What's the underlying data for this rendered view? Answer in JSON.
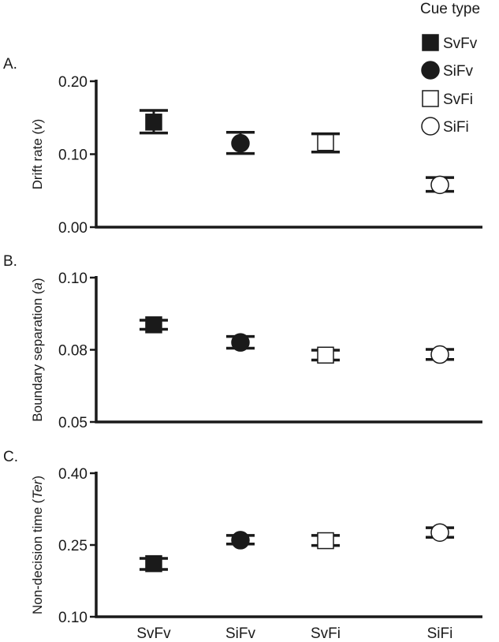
{
  "legend": {
    "title": "Cue type",
    "placement": "top-right",
    "items": [
      {
        "label": "SvFv",
        "marker": "square",
        "fill": "filled"
      },
      {
        "label": "SiFv",
        "marker": "circle",
        "fill": "filled"
      },
      {
        "label": "SvFi",
        "marker": "square",
        "fill": "open"
      },
      {
        "label": "SiFi",
        "marker": "circle",
        "fill": "open"
      }
    ]
  },
  "colors": {
    "ink": "#1a1a1a",
    "open_fill": "#ffffff"
  },
  "chart_data": [
    {
      "type": "scatter",
      "panel_label": "A.",
      "ylabel": "Drift rate (v)",
      "ylabel_main": "Drift rate (",
      "ylabel_italic": "v",
      "ylabel_close": ")",
      "categories": [
        "SvFv",
        "SiFv",
        "SvFi",
        "SiFi"
      ],
      "ylim": [
        0.0,
        0.2
      ],
      "yticks": [
        0.0,
        0.1,
        0.2
      ],
      "ytick_labels": [
        "0.00",
        "0.10",
        "0.20"
      ],
      "values": [
        0.144,
        0.115,
        0.116,
        0.058
      ],
      "err_low": [
        0.129,
        0.101,
        0.103,
        0.049
      ],
      "err_high": [
        0.16,
        0.13,
        0.128,
        0.068
      ],
      "grid": false,
      "show_x_tick_labels": false
    },
    {
      "type": "scatter",
      "panel_label": "B.",
      "ylabel": "Boundary separation (a)",
      "ylabel_main": "Boundary separation (",
      "ylabel_italic": "a",
      "ylabel_close": ")",
      "categories": [
        "SvFv",
        "SiFv",
        "SvFi",
        "SiFi"
      ],
      "ylim": [
        0.05,
        0.1
      ],
      "yticks": [
        0.05,
        0.08,
        0.1
      ],
      "ytick_labels": [
        "0.05",
        "0.08",
        "0.10"
      ],
      "ytick_positions": [
        0.0,
        0.5,
        1.0
      ],
      "values_norm": [
        0.673,
        0.551,
        0.463,
        0.467
      ],
      "err_low_norm": [
        0.642,
        0.511,
        0.429,
        0.433
      ],
      "err_high_norm": [
        0.705,
        0.592,
        0.497,
        0.503
      ],
      "grid": false,
      "show_x_tick_labels": false
    },
    {
      "type": "scatter",
      "panel_label": "C.",
      "ylabel": "Non-decision time (Ter)",
      "ylabel_main": "Non-decision time (",
      "ylabel_italic": "Ter",
      "ylabel_close": ")",
      "categories": [
        "SvFv",
        "SiFv",
        "SvFi",
        "SiFi"
      ],
      "ylim": [
        0.1,
        0.4
      ],
      "yticks": [
        0.1,
        0.25,
        0.4
      ],
      "ytick_labels": [
        "0.10",
        "0.25",
        "0.40"
      ],
      "values": [
        0.211,
        0.26,
        0.259,
        0.276
      ],
      "err_low": [
        0.199,
        0.252,
        0.249,
        0.266
      ],
      "err_high": [
        0.222,
        0.27,
        0.27,
        0.286
      ],
      "grid": false,
      "show_x_tick_labels": true
    }
  ]
}
